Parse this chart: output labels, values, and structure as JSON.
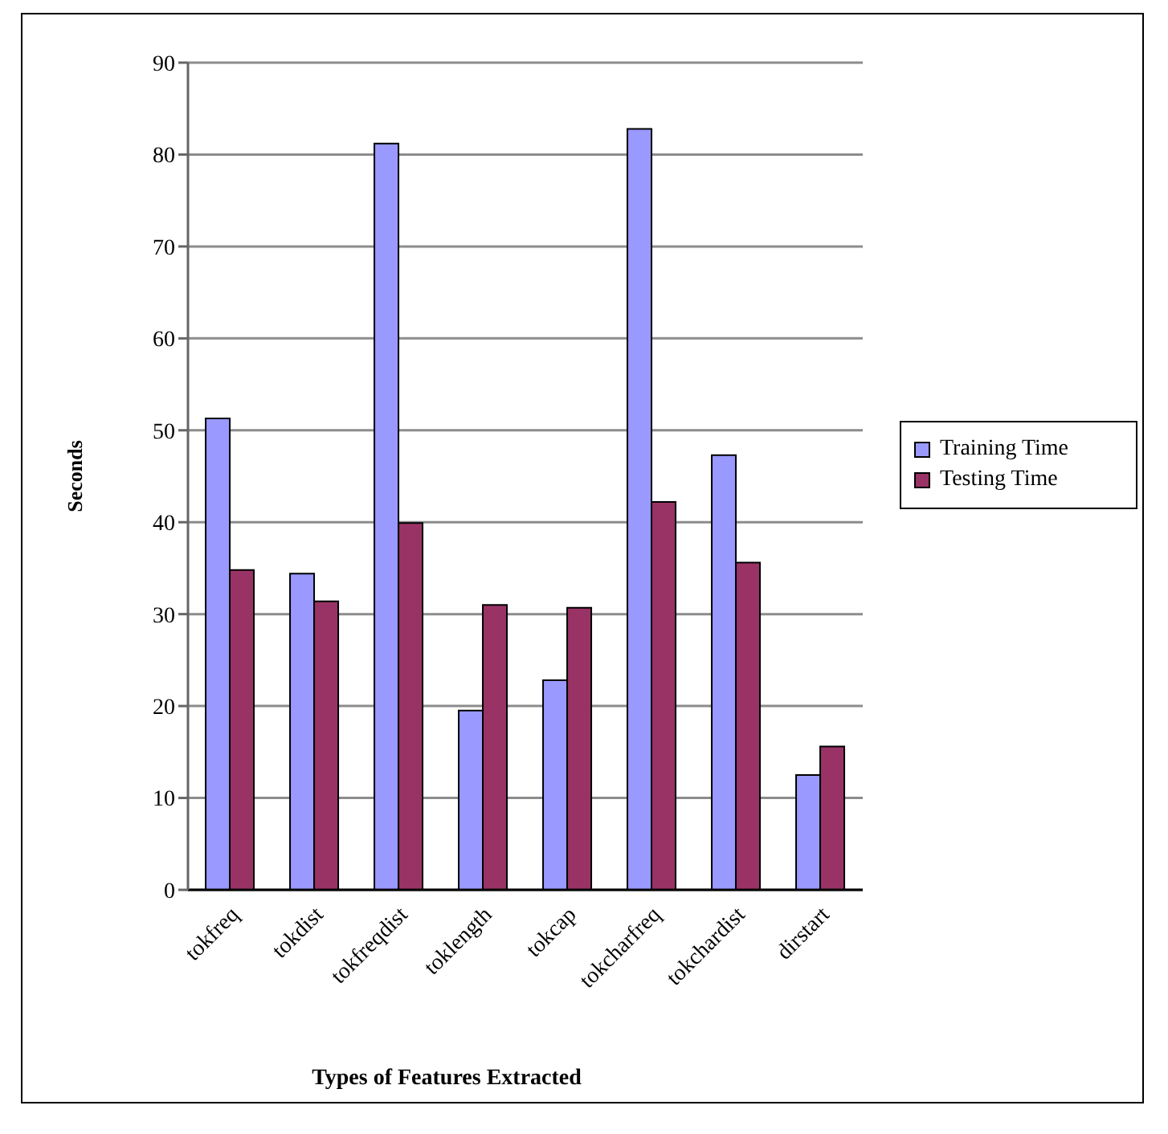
{
  "chart_data": {
    "type": "bar",
    "xlabel": "Types of Features Extracted",
    "ylabel": "Seconds",
    "categories": [
      "tokfreq",
      "tokdist",
      "tokfreqdist",
      "toklength",
      "tokcap",
      "tokcharfreq",
      "tokchardist",
      "dirstart"
    ],
    "series": [
      {
        "name": "Training Time",
        "color": "#9999ff",
        "values": [
          51.3,
          34.4,
          81.2,
          19.5,
          22.8,
          82.8,
          47.3,
          12.5
        ]
      },
      {
        "name": "Testing Time",
        "color": "#993366",
        "values": [
          34.8,
          31.4,
          39.9,
          31.0,
          30.7,
          42.2,
          35.6,
          15.6
        ]
      }
    ],
    "ylim": [
      0,
      90
    ],
    "yticks": [
      0,
      10,
      20,
      30,
      40,
      50,
      60,
      70,
      80,
      90
    ],
    "grid": "y",
    "legend": "right"
  }
}
